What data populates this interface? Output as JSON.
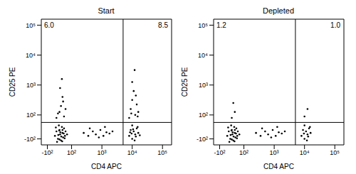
{
  "chart_data": [
    {
      "type": "scatter",
      "title": "Start",
      "x_label": "CD4 APC",
      "y_label": "CD25 PE",
      "color": "#000000",
      "marker": "dot",
      "xlim": [
        0,
        4.3
      ],
      "ylim": [
        0,
        4.2
      ],
      "xticks": [
        {
          "value": 0.2,
          "label": "-10²"
        },
        {
          "value": 1,
          "label": "10²"
        },
        {
          "value": 2,
          "label": "10³"
        },
        {
          "value": 3,
          "label": "10⁴"
        },
        {
          "value": 4,
          "label": "10⁵"
        }
      ],
      "yticks": [
        {
          "value": 0.2,
          "label": "-10²"
        },
        {
          "value": 1,
          "label": "10²"
        },
        {
          "value": 2,
          "label": "10³"
        },
        {
          "value": 3,
          "label": "10⁴"
        },
        {
          "value": 4,
          "label": "10⁵"
        }
      ],
      "gates": {
        "x": 2.7,
        "y": 0.75
      },
      "annotations": [
        "6.0",
        "8.5"
      ],
      "x": [
        0.45,
        0.5,
        0.55,
        0.6,
        0.62,
        0.65,
        0.68,
        0.7,
        0.72,
        0.75,
        0.78,
        0.8,
        0.58,
        0.52,
        0.66,
        0.74,
        0.6,
        0.48,
        0.7,
        0.85,
        0.63,
        0.56,
        0.77,
        0.69,
        0.59,
        1.4,
        1.55,
        1.7,
        1.8,
        1.95,
        2.05,
        2.15,
        2.25,
        1.6,
        1.9,
        2.1,
        2.35,
        2.9,
        2.95,
        3.0,
        3.05,
        3.1,
        3.15,
        3.2,
        3.0,
        3.08,
        3.12,
        2.98,
        3.18,
        3.03,
        3.25,
        2.93,
        0.5,
        0.6,
        0.65,
        0.7,
        0.75,
        0.8,
        0.62,
        0.68,
        0.72,
        0.55,
        2.9,
        2.95,
        3.0,
        3.05,
        3.1,
        3.15,
        3.2,
        3.0,
        3.08,
        3.12,
        2.97,
        3.18
      ],
      "y": [
        0.3,
        0.45,
        0.2,
        0.5,
        0.35,
        0.15,
        0.6,
        0.4,
        0.25,
        0.55,
        0.3,
        0.45,
        0.65,
        0.1,
        0.28,
        0.38,
        0.18,
        0.58,
        0.5,
        0.35,
        0.42,
        0.33,
        0.22,
        0.12,
        0.48,
        0.4,
        0.3,
        0.45,
        0.35,
        0.5,
        0.3,
        0.42,
        0.38,
        0.55,
        0.25,
        0.6,
        0.45,
        0.3,
        0.5,
        0.2,
        0.45,
        0.35,
        0.55,
        0.4,
        0.65,
        0.15,
        0.28,
        0.38,
        0.6,
        0.52,
        0.32,
        0.42,
        0.9,
        1.1,
        1.3,
        1.6,
        0.95,
        1.2,
        1.9,
        2.2,
        1.45,
        1.05,
        0.9,
        1.2,
        1.5,
        1.8,
        1.0,
        1.35,
        1.1,
        2.1,
        2.5,
        1.65,
        1.05,
        0.95
      ]
    },
    {
      "type": "scatter",
      "title": "Depleted",
      "x_label": "CD4 APC",
      "y_label": "CD25 PE",
      "color": "#000000",
      "marker": "dot",
      "xlim": [
        0,
        4.3
      ],
      "ylim": [
        0,
        4.2
      ],
      "xticks": [
        {
          "value": 0.2,
          "label": "-10²"
        },
        {
          "value": 1,
          "label": "10²"
        },
        {
          "value": 2,
          "label": "10³"
        },
        {
          "value": 3,
          "label": "10⁴"
        },
        {
          "value": 4,
          "label": "10⁵"
        }
      ],
      "yticks": [
        {
          "value": 0.2,
          "label": "-10²"
        },
        {
          "value": 1,
          "label": "10²"
        },
        {
          "value": 2,
          "label": "10³"
        },
        {
          "value": 3,
          "label": "10⁴"
        },
        {
          "value": 4,
          "label": "10⁵"
        }
      ],
      "gates": {
        "x": 2.7,
        "y": 0.75
      },
      "annotations": [
        "1.2",
        "1.0"
      ],
      "x": [
        0.45,
        0.5,
        0.55,
        0.6,
        0.62,
        0.65,
        0.68,
        0.7,
        0.72,
        0.75,
        0.78,
        0.8,
        0.58,
        0.52,
        0.66,
        0.74,
        0.6,
        0.48,
        0.7,
        0.85,
        0.63,
        0.56,
        0.77,
        0.69,
        0.59,
        1.4,
        1.55,
        1.7,
        1.8,
        1.95,
        2.05,
        2.15,
        2.25,
        1.6,
        1.9,
        2.1,
        2.35,
        2.9,
        2.95,
        3.0,
        3.05,
        3.1,
        3.15,
        3.2,
        3.0,
        3.08,
        3.12,
        2.98,
        3.18,
        0.6,
        0.7,
        0.65,
        3.0,
        3.1
      ],
      "y": [
        0.3,
        0.45,
        0.2,
        0.5,
        0.35,
        0.15,
        0.6,
        0.4,
        0.25,
        0.55,
        0.3,
        0.45,
        0.65,
        0.1,
        0.28,
        0.38,
        0.18,
        0.58,
        0.5,
        0.35,
        0.42,
        0.33,
        0.22,
        0.12,
        0.48,
        0.4,
        0.3,
        0.45,
        0.35,
        0.5,
        0.3,
        0.42,
        0.38,
        0.55,
        0.25,
        0.6,
        0.45,
        0.3,
        0.5,
        0.2,
        0.45,
        0.35,
        0.55,
        0.4,
        0.65,
        0.15,
        0.28,
        0.38,
        0.6,
        0.9,
        1.1,
        1.4,
        0.95,
        1.2
      ]
    }
  ]
}
